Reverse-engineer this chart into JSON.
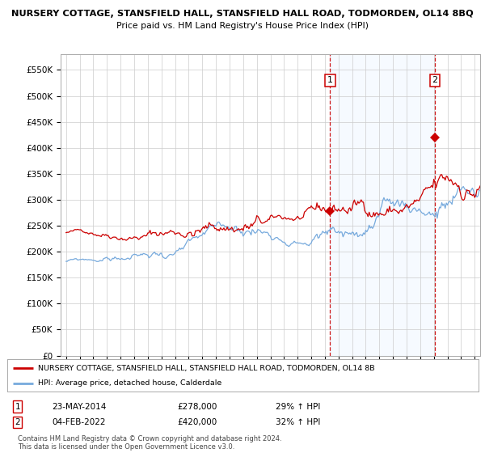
{
  "title": "NURSERY COTTAGE, STANSFIELD HALL, STANSFIELD HALL ROAD, TODMORDEN, OL14 8BQ",
  "subtitle": "Price paid vs. HM Land Registry's House Price Index (HPI)",
  "legend_line1": "NURSERY COTTAGE, STANSFIELD HALL, STANSFIELD HALL ROAD, TODMORDEN, OL14 8B",
  "legend_line2": "HPI: Average price, detached house, Calderdale",
  "annotation1_label": "1",
  "annotation1_date": "23-MAY-2014",
  "annotation1_price": "£278,000",
  "annotation1_hpi": "29% ↑ HPI",
  "annotation2_label": "2",
  "annotation2_date": "04-FEB-2022",
  "annotation2_price": "£420,000",
  "annotation2_hpi": "32% ↑ HPI",
  "footer": "Contains HM Land Registry data © Crown copyright and database right 2024.\nThis data is licensed under the Open Government Licence v3.0.",
  "red_color": "#cc0000",
  "blue_color": "#77aadd",
  "shading_color": "#ddeeff",
  "annotation_box_color": "#cc0000",
  "dashed_line_color": "#cc0000",
  "background_color": "#ffffff",
  "grid_color": "#cccccc",
  "ylim": [
    0,
    580000
  ],
  "yticks": [
    0,
    50000,
    100000,
    150000,
    200000,
    250000,
    300000,
    350000,
    400000,
    450000,
    500000,
    550000
  ],
  "year_start": 1995,
  "year_end": 2025,
  "sale1_year": 2014.38,
  "sale1_value": 278000,
  "sale2_year": 2022.08,
  "sale2_value": 420000
}
